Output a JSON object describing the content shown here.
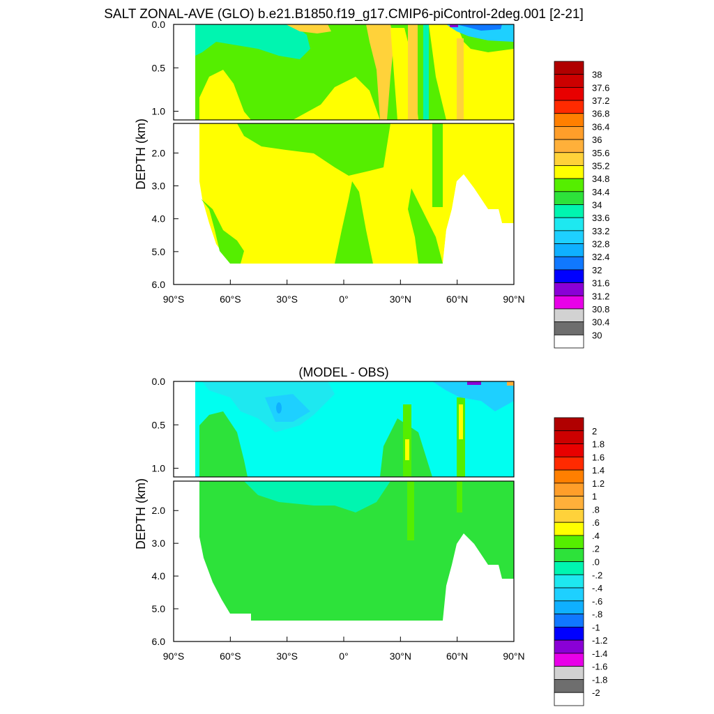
{
  "title": "SALT ZONAL-AVE (GLO) b.e21.B1850.f19_g17.CMIP6-piControl-2deg.001 [2-21]",
  "chart_data": [
    {
      "type": "heatmap",
      "title": "",
      "ylabel": "DEPTH (km)",
      "xlabel": "",
      "x_ticks": [
        "90°S",
        "60°S",
        "30°S",
        "0°",
        "30°N",
        "60°N",
        "90°N"
      ],
      "x_tick_values": [
        -90,
        -60,
        -30,
        0,
        30,
        60,
        90
      ],
      "y_ticks_upper": [
        "0.0",
        "0.5",
        "1.0"
      ],
      "y_ticks_upper_values": [
        0,
        0.5,
        1.0
      ],
      "y_ticks_lower": [
        "2.0",
        "3.0",
        "4.0",
        "5.0",
        "6.0"
      ],
      "y_ticks_lower_values": [
        2,
        3,
        4,
        5,
        6
      ],
      "xlim": [
        -90,
        90
      ],
      "ylim": [
        6,
        0
      ],
      "colorbar_labels": [
        "38",
        "37.6",
        "37.2",
        "36.8",
        "36.4",
        "36",
        "35.6",
        "35.2",
        "34.8",
        "34.4",
        "34",
        "33.6",
        "33.2",
        "32.8",
        "32.4",
        "32",
        "31.6",
        "31.2",
        "30.8",
        "30.4",
        "30"
      ],
      "colorbar_colors": [
        "#b00000",
        "#cc0000",
        "#e80000",
        "#ff2a00",
        "#ff7f00",
        "#ff9e2a",
        "#ffb03a",
        "#ffd23a",
        "#ffff00",
        "#55ee00",
        "#2de23a",
        "#00f5b0",
        "#1ee8f0",
        "#1ed0ff",
        "#0fb0ff",
        "#1078ff",
        "#0000ff",
        "#8a00d6",
        "#e800e8",
        "#d2d2d2",
        "#6e6e6e",
        "#ffffff"
      ]
    },
    {
      "type": "heatmap",
      "title": "(MODEL - OBS)",
      "ylabel": "DEPTH (km)",
      "xlabel": "",
      "x_ticks": [
        "90°S",
        "60°S",
        "30°S",
        "0°",
        "30°N",
        "60°N",
        "90°N"
      ],
      "x_tick_values": [
        -90,
        -60,
        -30,
        0,
        30,
        60,
        90
      ],
      "y_ticks_upper": [
        "0.0",
        "0.5",
        "1.0"
      ],
      "y_ticks_upper_values": [
        0,
        0.5,
        1.0
      ],
      "y_ticks_lower": [
        "2.0",
        "3.0",
        "4.0",
        "5.0",
        "6.0"
      ],
      "y_ticks_lower_values": [
        2,
        3,
        4,
        5,
        6
      ],
      "xlim": [
        -90,
        90
      ],
      "ylim": [
        6,
        0
      ],
      "colorbar_labels": [
        "2",
        "1.8",
        "1.6",
        "1.4",
        "1.2",
        "1",
        ".8",
        ".6",
        ".4",
        ".2",
        ".0",
        "-.2",
        "-.4",
        "-.6",
        "-.8",
        "-1",
        "-1.2",
        "-1.4",
        "-1.6",
        "-1.8",
        "-2"
      ],
      "colorbar_colors": [
        "#b00000",
        "#cc0000",
        "#e80000",
        "#ff2a00",
        "#ff7f00",
        "#ff9e2a",
        "#ffb03a",
        "#ffd23a",
        "#ffff00",
        "#55ee00",
        "#2de23a",
        "#00f5b0",
        "#1ee8f0",
        "#1ed0ff",
        "#0fb0ff",
        "#1078ff",
        "#0000ff",
        "#8a00d6",
        "#e800e8",
        "#d2d2d2",
        "#6e6e6e",
        "#ffffff"
      ]
    }
  ]
}
